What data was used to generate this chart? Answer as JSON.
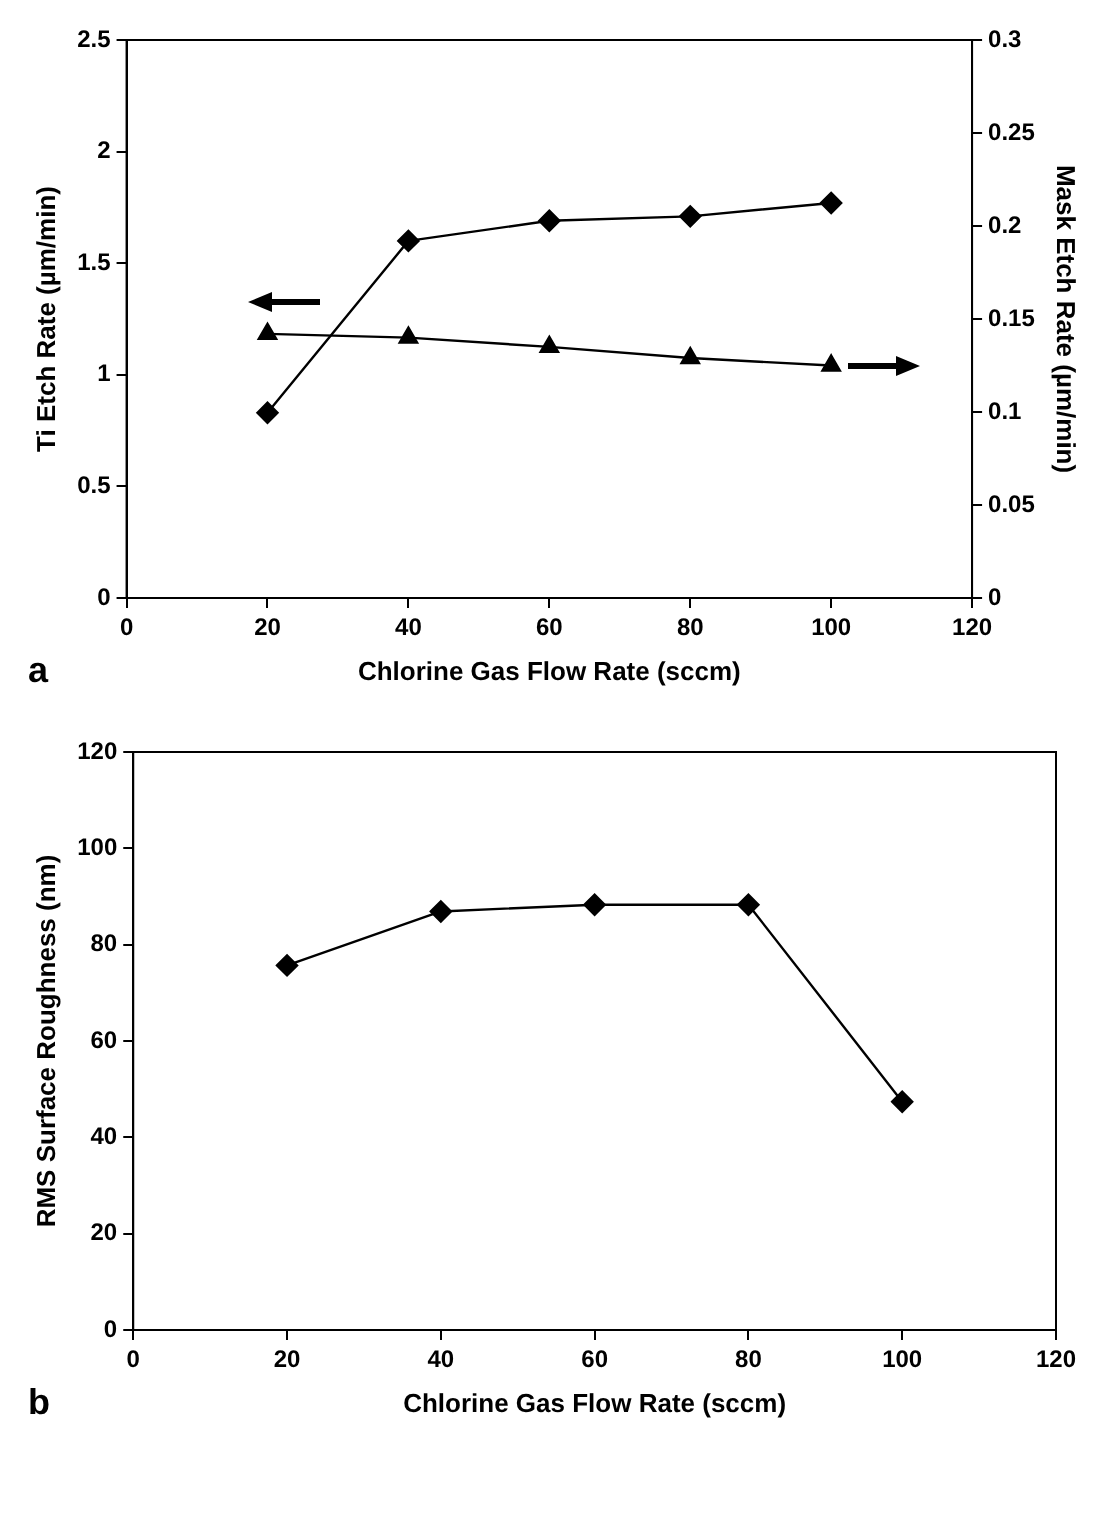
{
  "chart_data": [
    {
      "type": "line",
      "xlabel": "Chlorine Gas Flow Rate (sccm)",
      "ylabel": "Ti Etch Rate (µm/min)",
      "y2label": "Mask Etch Rate (µm/min)",
      "x": [
        20,
        40,
        60,
        80,
        100
      ],
      "xlim": [
        0,
        120
      ],
      "xticks": [
        0,
        20,
        40,
        60,
        80,
        100,
        120
      ],
      "ylim": [
        0,
        2.5
      ],
      "yticks": [
        0,
        0.5,
        1,
        1.5,
        2,
        2.5
      ],
      "y2lim": [
        0,
        0.3
      ],
      "y2ticks": [
        0,
        0.05,
        0.1,
        0.15,
        0.2,
        0.25,
        0.3
      ],
      "grid": false,
      "legend": false,
      "annotations": [
        "a"
      ],
      "series": [
        {
          "color": "#000000",
          "values": [
            0.83,
            1.6,
            1.69,
            1.71,
            1.77
          ],
          "marker": "diamond"
        },
        {
          "color": "#000000",
          "values": [
            0.142,
            0.14,
            0.135,
            0.129,
            0.125
          ],
          "marker": "triangle",
          "axis": "y2"
        }
      ]
    },
    {
      "type": "line",
      "xlabel": "Chlorine Gas Flow Rate (sccm)",
      "ylabel": "RMS Surface Roughness (nm)",
      "x": [
        20,
        40,
        60,
        80,
        100
      ],
      "xlim": [
        0,
        120
      ],
      "xticks": [
        0,
        20,
        40,
        60,
        80,
        100,
        120
      ],
      "ylim": [
        0,
        120
      ],
      "yticks": [
        0,
        20,
        40,
        60,
        80,
        100,
        120
      ],
      "grid": false,
      "legend": false,
      "annotations": [
        "b"
      ],
      "series": [
        {
          "color": "#000000",
          "values": [
            75.7,
            86.9,
            88.3,
            88.3,
            47.4
          ],
          "marker": "diamond"
        }
      ]
    }
  ]
}
